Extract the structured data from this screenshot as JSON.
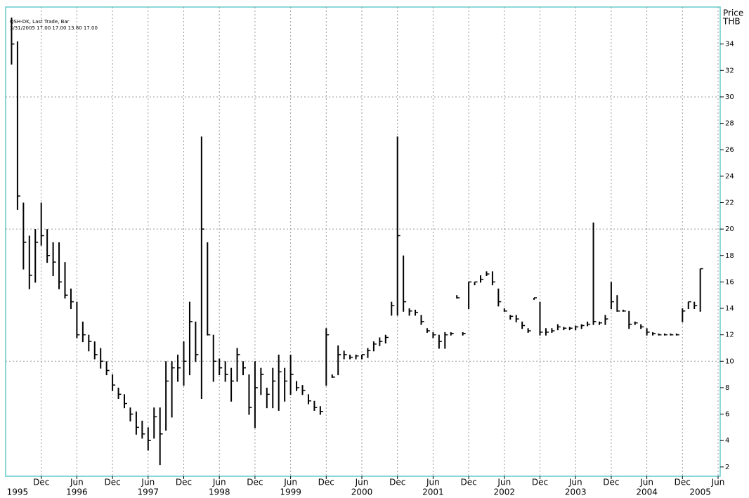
{
  "chart_data": {
    "type": "hlc",
    "title": "QSH-DK, Last Trade, Bar",
    "subtitle": "3/31/2005 17.00 17.00 13.80 17.00",
    "y_label": "Price",
    "y_unit": "THB",
    "color": "#000000",
    "grid_color": "#9a9a9a",
    "frame_color": "#66cccc",
    "xlim": [
      "1995-06",
      "2005-06"
    ],
    "ylim": [
      1.3,
      36.8
    ],
    "yticks": [
      2,
      4,
      6,
      8,
      10,
      12,
      14,
      16,
      18,
      20,
      22,
      24,
      26,
      28,
      30,
      32,
      34
    ],
    "ygrid": [
      10,
      20,
      30
    ],
    "xticks": [
      {
        "value": "1995-12",
        "label": "Dec"
      },
      {
        "value": "1996-06",
        "label": "Jun"
      },
      {
        "value": "1996-12",
        "label": "Dec"
      },
      {
        "value": "1997-06",
        "label": "Jun"
      },
      {
        "value": "1997-12",
        "label": "Dec"
      },
      {
        "value": "1998-06",
        "label": "Jun"
      },
      {
        "value": "1998-12",
        "label": "Dec"
      },
      {
        "value": "1999-06",
        "label": "Jun"
      },
      {
        "value": "1999-12",
        "label": "Dec"
      },
      {
        "value": "2000-06",
        "label": "Jun"
      },
      {
        "value": "2000-12",
        "label": "Dec"
      },
      {
        "value": "2001-06",
        "label": "Jun"
      },
      {
        "value": "2001-12",
        "label": "Dec"
      },
      {
        "value": "2002-06",
        "label": "Jun"
      },
      {
        "value": "2002-12",
        "label": "Dec"
      },
      {
        "value": "2003-06",
        "label": "Jun"
      },
      {
        "value": "2003-12",
        "label": "Dec"
      },
      {
        "value": "2004-06",
        "label": "Jun"
      },
      {
        "value": "2004-12",
        "label": "Dec"
      },
      {
        "value": "2005-06",
        "label": "Jun"
      }
    ],
    "year_labels": [
      {
        "value": "1995-08",
        "label": "1995"
      },
      {
        "value": "1996-06",
        "label": "1996"
      },
      {
        "value": "1997-06",
        "label": "1997"
      },
      {
        "value": "1998-06",
        "label": "1998"
      },
      {
        "value": "1999-06",
        "label": "1999"
      },
      {
        "value": "2000-06",
        "label": "2000"
      },
      {
        "value": "2001-06",
        "label": "2001"
      },
      {
        "value": "2002-06",
        "label": "2002"
      },
      {
        "value": "2003-06",
        "label": "2003"
      },
      {
        "value": "2004-06",
        "label": "2004"
      },
      {
        "value": "2005-03",
        "label": "2005"
      }
    ],
    "x": [
      "1995-07",
      "1995-08",
      "1995-09",
      "1995-10",
      "1995-11",
      "1995-12",
      "1996-01",
      "1996-02",
      "1996-03",
      "1996-04",
      "1996-05",
      "1996-06",
      "1996-07",
      "1996-08",
      "1996-09",
      "1996-10",
      "1996-11",
      "1996-12",
      "1997-01",
      "1997-02",
      "1997-03",
      "1997-04",
      "1997-05",
      "1997-06",
      "1997-07",
      "1997-08",
      "1997-09",
      "1997-10",
      "1997-11",
      "1997-12",
      "1998-01",
      "1998-02",
      "1998-03",
      "1998-04",
      "1998-05",
      "1998-06",
      "1998-07",
      "1998-08",
      "1998-09",
      "1998-10",
      "1998-11",
      "1998-12",
      "1999-01",
      "1999-02",
      "1999-03",
      "1999-04",
      "1999-05",
      "1999-06",
      "1999-07",
      "1999-08",
      "1999-09",
      "1999-10",
      "1999-11",
      "1999-12",
      "2000-01",
      "2000-02",
      "2000-03",
      "2000-04",
      "2000-05",
      "2000-06",
      "2000-07",
      "2000-08",
      "2000-09",
      "2000-10",
      "2000-11",
      "2000-12",
      "2001-01",
      "2001-02",
      "2001-03",
      "2001-04",
      "2001-05",
      "2001-06",
      "2001-07",
      "2001-08",
      "2001-09",
      "2001-10",
      "2001-11",
      "2001-12",
      "2002-01",
      "2002-02",
      "2002-03",
      "2002-04",
      "2002-05",
      "2002-06",
      "2002-07",
      "2002-08",
      "2002-09",
      "2002-10",
      "2002-11",
      "2002-12",
      "2003-01",
      "2003-02",
      "2003-03",
      "2003-04",
      "2003-05",
      "2003-06",
      "2003-07",
      "2003-08",
      "2003-09",
      "2003-10",
      "2003-11",
      "2003-12",
      "2004-01",
      "2004-02",
      "2004-03",
      "2004-04",
      "2004-05",
      "2004-06",
      "2004-07",
      "2004-08",
      "2004-09",
      "2004-10",
      "2004-11",
      "2004-12",
      "2005-01",
      "2005-02",
      "2005-03"
    ],
    "high": [
      36,
      34.2,
      22,
      19.5,
      20,
      22,
      20,
      19,
      19,
      17.5,
      15.5,
      14.5,
      13,
      12,
      11.5,
      11,
      10,
      9,
      8,
      7.5,
      6.5,
      6.2,
      5.5,
      5,
      6.5,
      6.5,
      10,
      10,
      10.5,
      11.5,
      14.5,
      13,
      27,
      19,
      12,
      10.2,
      10,
      9.5,
      11,
      10,
      9,
      10,
      9.5,
      8,
      9.5,
      10.5,
      9.5,
      10.5,
      8.5,
      8.2,
      7.5,
      7,
      6.6,
      12.5,
      9,
      11.2,
      10.8,
      10.5,
      10.5,
      10.5,
      11,
      11.5,
      11.8,
      12,
      14.5,
      27,
      18,
      14,
      13.9,
      13.5,
      12.5,
      12.2,
      12,
      12.2,
      12.2,
      15,
      12.2,
      16,
      16,
      16.5,
      16.8,
      16.8,
      15.5,
      14,
      13.5,
      13.5,
      13,
      12.5,
      14.8,
      14.5,
      12.5,
      12.5,
      12.8,
      12.6,
      12.6,
      12.7,
      12.8,
      13,
      20.5,
      13,
      13.5,
      16,
      15,
      13.9,
      13.8,
      13,
      12.8,
      12.5,
      12.2,
      12.1,
      12.1,
      12.1,
      12.1,
      14,
      14.5,
      14.5,
      17
    ],
    "low": [
      32.5,
      21.5,
      17,
      15.5,
      16,
      18.8,
      17.5,
      16.5,
      15.5,
      14.8,
      14,
      11.8,
      11.5,
      10.8,
      10.2,
      9.5,
      9,
      7.8,
      7.2,
      6.5,
      5.5,
      4.5,
      4.2,
      3.3,
      4.2,
      2.2,
      4.8,
      5.8,
      8.5,
      8.2,
      9,
      10,
      7.2,
      12,
      8.5,
      9,
      8.5,
      7,
      8.5,
      9,
      6,
      5,
      7.5,
      6.5,
      6.5,
      6.3,
      7,
      7.5,
      7.8,
      7.5,
      6.8,
      6.3,
      6,
      8.2,
      8.8,
      9,
      10.2,
      10.2,
      10.2,
      10.2,
      10.3,
      10.8,
      11.2,
      11.4,
      13.5,
      13.5,
      13.8,
      13.5,
      13.5,
      12.8,
      12.2,
      11.8,
      11,
      11,
      12,
      14.8,
      12,
      14,
      15.8,
      16,
      16.5,
      15.8,
      14.2,
      13.8,
      13.2,
      13,
      12.5,
      12.2,
      14.7,
      12,
      12,
      12.2,
      12.4,
      12.4,
      12.4,
      12.4,
      12.5,
      12.7,
      12.8,
      12.8,
      12.8,
      14,
      13.8,
      13.8,
      12.5,
      12.8,
      12.5,
      12,
      12,
      12,
      12,
      12,
      12,
      13,
      14,
      14,
      13.8
    ],
    "close": [
      34,
      22.5,
      19,
      16.5,
      19,
      19.5,
      18,
      17.5,
      16,
      15,
      14.5,
      12,
      12,
      11.5,
      10.5,
      10,
      9.3,
      8.2,
      7.5,
      6.8,
      6,
      5,
      4.5,
      4,
      5.8,
      4.5,
      8.5,
      9.5,
      9.5,
      10,
      13,
      10.5,
      20,
      12,
      10,
      9.5,
      9,
      8.5,
      10.5,
      9.5,
      6.5,
      8,
      9,
      7.5,
      8.5,
      9.2,
      8.5,
      9,
      8,
      7.8,
      7,
      6.5,
      6.2,
      12,
      8.8,
      10.5,
      10.5,
      10.3,
      10.4,
      10.5,
      10.8,
      11.3,
      11.5,
      11.8,
      14.2,
      19.5,
      14.5,
      13.8,
      13.7,
      13,
      12.3,
      12,
      11.5,
      12,
      12.1,
      14.8,
      12.1,
      16,
      16,
      16.2,
      16.6,
      16,
      14.5,
      13.8,
      13.4,
      13.2,
      12.7,
      12.3,
      14.8,
      12.2,
      12.2,
      12.3,
      12.6,
      12.5,
      12.5,
      12.6,
      12.7,
      12.8,
      13,
      12.9,
      13.2,
      14.5,
      13.8,
      13.8,
      12.8,
      12.9,
      12.6,
      12.2,
      12.1,
      12,
      12,
      12,
      12,
      13.8,
      14.5,
      14.2,
      17
    ]
  }
}
